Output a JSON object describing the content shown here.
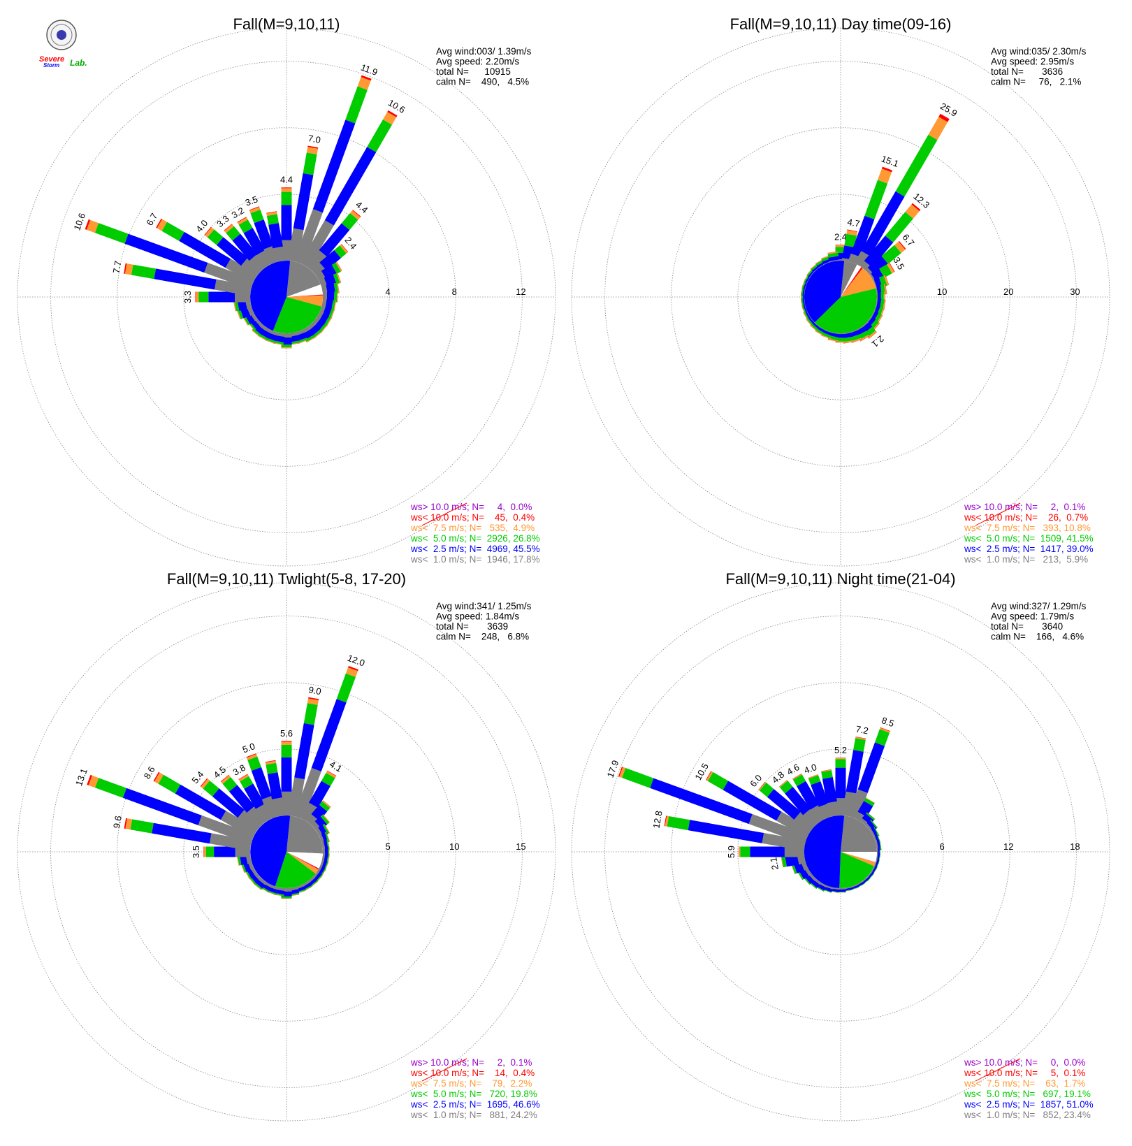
{
  "colors": {
    "ws_gt10": "#9900cc",
    "ws_lt10": "#ff0000",
    "ws_lt7_5": "#ff9933",
    "ws_lt5": "#00cc00",
    "ws_lt2_5": "#0000ff",
    "ws_lt1": "#808080",
    "grid": "#888888"
  },
  "logo": {
    "line1": "Severe",
    "line2": "Storm",
    "line3": "Lab."
  },
  "chart_data": [
    {
      "type": "wind-rose",
      "title": "Fall(M=9,10,11)",
      "info": [
        "Avg wind:003/ 1.39m/s",
        "Avg speed: 2.20m/s",
        "total N=      10915",
        "calm N=    490,   4.5%"
      ],
      "rings": [
        4,
        8,
        12
      ],
      "ring_labels": [
        "4",
        "8",
        "12"
      ],
      "rmax": 14,
      "calm_fraction": 0.045,
      "pie": [
        0.178,
        0.455,
        0.268,
        0.049,
        0.004,
        0.0
      ],
      "directions": [
        0,
        10,
        20,
        30,
        40,
        50,
        60,
        70,
        80,
        90,
        100,
        110,
        120,
        130,
        140,
        150,
        160,
        170,
        180,
        190,
        200,
        210,
        220,
        230,
        240,
        250,
        260,
        270,
        280,
        290,
        300,
        310,
        320,
        330,
        340,
        350
      ],
      "totals": [
        4.4,
        7.0,
        11.9,
        10.6,
        4.4,
        2.4,
        1.5,
        1.2,
        1.0,
        0.9,
        0.8,
        0.8,
        0.8,
        0.8,
        0.8,
        0.8,
        0.7,
        0.7,
        0.9,
        0.7,
        0.7,
        0.7,
        0.7,
        0.6,
        0.7,
        0.9,
        1.0,
        3.3,
        7.7,
        10.6,
        6.7,
        4.0,
        3.3,
        3.2,
        3.5,
        3.0
      ],
      "labels": {
        "0": "4.4",
        "10": "7.0",
        "20": "11.9",
        "30": "10.6",
        "40": "4.4",
        "50": "2.4",
        "270": "3.3",
        "280": "7.7",
        "290": "10.6",
        "300": "6.7",
        "310": "4.0",
        "320": "3.3",
        "330": "3.2",
        "340": "3.5"
      },
      "legend": [
        {
          "text": "ws> 10.0 m/s; N=     4,  0.0%",
          "color": "#9900cc"
        },
        {
          "text": "ws< 10.0 m/s; N=    45,  0.4%",
          "color": "#ff0000"
        },
        {
          "text": "ws<  7.5 m/s; N=   535,  4.9%",
          "color": "#ff9933"
        },
        {
          "text": "ws<  5.0 m/s; N=  2926, 26.8%",
          "color": "#00cc00"
        },
        {
          "text": "ws<  2.5 m/s; N=  4969, 45.5%",
          "color": "#0000ff"
        },
        {
          "text": "ws<  1.0 m/s; N=  1946, 17.8%",
          "color": "#808080"
        }
      ]
    },
    {
      "type": "wind-rose",
      "title": "Fall(M=9,10,11) Day time(09-16)",
      "info": [
        "Avg wind:035/ 2.30m/s",
        "Avg speed: 2.95m/s",
        "total N=       3636",
        "calm N=     76,   2.1%"
      ],
      "rings": [
        10,
        20,
        30
      ],
      "ring_labels": [
        "10",
        "20",
        "30"
      ],
      "rmax": 35,
      "calm_fraction": 0.021,
      "pie": [
        0.059,
        0.39,
        0.415,
        0.108,
        0.007,
        0.001
      ],
      "directions": [
        0,
        10,
        20,
        30,
        40,
        50,
        60,
        70,
        80,
        90,
        100,
        110,
        120,
        130,
        140,
        150,
        160,
        170,
        180,
        190,
        200,
        210,
        220,
        230,
        240,
        250,
        260,
        270,
        280,
        290,
        300,
        310,
        320,
        330,
        340,
        350
      ],
      "totals": [
        2.4,
        4.7,
        15.1,
        25.9,
        12.3,
        6.7,
        3.5,
        2.0,
        1.5,
        1.2,
        1.3,
        1.3,
        1.4,
        1.6,
        2.1,
        1.8,
        1.6,
        1.5,
        1.4,
        1.2,
        1.0,
        0.9,
        0.8,
        0.7,
        0.6,
        0.5,
        0.5,
        0.5,
        0.5,
        0.5,
        0.5,
        0.6,
        0.7,
        0.8,
        1.0,
        1.4
      ],
      "labels": {
        "0": "2.4",
        "10": "4.7",
        "20": "15.1",
        "30": "25.9",
        "40": "12.3",
        "50": "6.7",
        "60": "3.5",
        "140": "2.1"
      },
      "legend": [
        {
          "text": "ws> 10.0 m/s; N=     2,  0.1%",
          "color": "#9900cc"
        },
        {
          "text": "ws< 10.0 m/s; N=    26,  0.7%",
          "color": "#ff0000"
        },
        {
          "text": "ws<  7.5 m/s; N=   393, 10.8%",
          "color": "#ff9933"
        },
        {
          "text": "ws<  5.0 m/s; N=  1509, 41.5%",
          "color": "#00cc00"
        },
        {
          "text": "ws<  2.5 m/s; N=  1417, 39.0%",
          "color": "#0000ff"
        },
        {
          "text": "ws<  1.0 m/s; N=   213,  5.9%",
          "color": "#808080"
        }
      ]
    },
    {
      "type": "wind-rose",
      "title": "Fall(M=9,10,11) Twlight(5-8, 17-20)",
      "info": [
        "Avg wind:341/ 1.25m/s",
        "Avg speed: 1.84m/s",
        "total N=       3639",
        "calm N=    248,   6.8%"
      ],
      "rings": [
        5,
        10,
        15
      ],
      "ring_labels": [
        "5",
        "10",
        "15"
      ],
      "rmax": 17.5,
      "calm_fraction": 0.068,
      "pie": [
        0.242,
        0.466,
        0.198,
        0.022,
        0.004,
        0.001
      ],
      "directions": [
        0,
        10,
        20,
        30,
        40,
        50,
        60,
        70,
        80,
        90,
        100,
        110,
        120,
        130,
        140,
        150,
        160,
        170,
        180,
        190,
        200,
        210,
        220,
        230,
        240,
        250,
        260,
        270,
        280,
        290,
        300,
        310,
        320,
        330,
        340,
        350
      ],
      "totals": [
        5.6,
        9.0,
        12.0,
        4.1,
        2.0,
        1.2,
        0.8,
        0.6,
        0.5,
        0.5,
        0.5,
        0.5,
        0.5,
        0.5,
        0.5,
        0.5,
        0.5,
        0.6,
        0.8,
        0.6,
        0.6,
        0.6,
        0.7,
        0.7,
        0.7,
        0.8,
        1.0,
        3.5,
        9.6,
        13.1,
        8.6,
        5.4,
        4.5,
        3.8,
        5.0,
        4.2
      ],
      "labels": {
        "0": "5.6",
        "10": "9.0",
        "20": "12.0",
        "30": "4.1",
        "270": "3.5",
        "280": "9.6",
        "290": "13.1",
        "300": "8.6",
        "310": "5.4",
        "320": "4.5",
        "330": "3.8",
        "340": "5.0"
      },
      "legend": [
        {
          "text": "ws> 10.0 m/s; N=     2,  0.1%",
          "color": "#9900cc"
        },
        {
          "text": "ws< 10.0 m/s; N=    14,  0.4%",
          "color": "#ff0000"
        },
        {
          "text": "ws<  7.5 m/s; N=    79,  2.2%",
          "color": "#ff9933"
        },
        {
          "text": "ws<  5.0 m/s; N=   720, 19.8%",
          "color": "#00cc00"
        },
        {
          "text": "ws<  2.5 m/s; N=  1695, 46.6%",
          "color": "#0000ff"
        },
        {
          "text": "ws<  1.0 m/s; N=   881, 24.2%",
          "color": "#808080"
        }
      ]
    },
    {
      "type": "wind-rose",
      "title": "Fall(M=9,10,11) Night time(21-04)",
      "info": [
        "Avg wind:327/ 1.29m/s",
        "Avg speed: 1.79m/s",
        "total N=       3640",
        "calm N=    166,   4.6%"
      ],
      "rings": [
        6,
        12,
        18
      ],
      "ring_labels": [
        "6",
        "12",
        "18"
      ],
      "rmax": 21,
      "calm_fraction": 0.046,
      "pie": [
        0.234,
        0.51,
        0.191,
        0.017,
        0.001,
        0.0
      ],
      "directions": [
        0,
        10,
        20,
        30,
        40,
        50,
        60,
        70,
        80,
        90,
        100,
        110,
        120,
        130,
        140,
        150,
        160,
        170,
        180,
        190,
        200,
        210,
        220,
        230,
        240,
        250,
        260,
        270,
        280,
        290,
        300,
        310,
        320,
        330,
        340,
        350
      ],
      "totals": [
        5.2,
        7.2,
        8.5,
        2.1,
        1.0,
        0.7,
        0.5,
        0.4,
        0.4,
        0.3,
        0.3,
        0.3,
        0.3,
        0.3,
        0.3,
        0.3,
        0.3,
        0.3,
        0.4,
        0.4,
        0.5,
        0.6,
        0.7,
        0.8,
        1.0,
        1.3,
        2.1,
        5.9,
        12.8,
        17.9,
        10.5,
        6.0,
        4.8,
        4.6,
        4.0,
        4.2
      ],
      "labels": {
        "0": "5.2",
        "10": "7.2",
        "20": "8.5",
        "260": "2.1",
        "270": "5.9",
        "280": "12.8",
        "290": "17.9",
        "300": "10.5",
        "310": "6.0",
        "320": "4.8",
        "330": "4.6",
        "340": "4.0"
      },
      "legend": [
        {
          "text": "ws> 10.0 m/s; N=     0,  0.0%",
          "color": "#9900cc"
        },
        {
          "text": "ws< 10.0 m/s; N=     5,  0.1%",
          "color": "#ff0000"
        },
        {
          "text": "ws<  7.5 m/s; N=    63,  1.7%",
          "color": "#ff9933"
        },
        {
          "text": "ws<  5.0 m/s; N=   697, 19.1%",
          "color": "#00cc00"
        },
        {
          "text": "ws<  2.5 m/s; N=  1857, 51.0%",
          "color": "#0000ff"
        },
        {
          "text": "ws<  1.0 m/s; N=   852, 23.4%",
          "color": "#808080"
        }
      ]
    }
  ]
}
